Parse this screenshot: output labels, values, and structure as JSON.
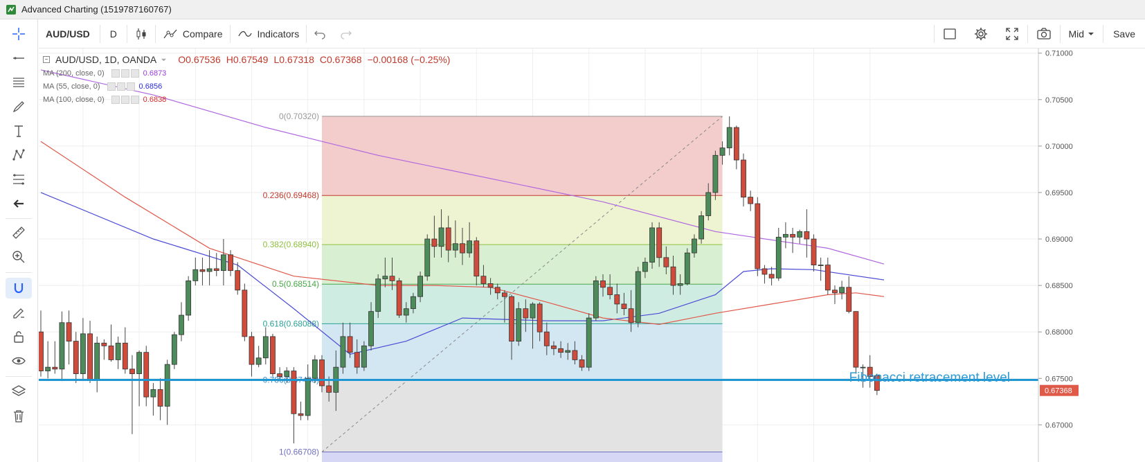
{
  "window": {
    "title": "Advanced Charting (1519787160767)"
  },
  "toolbar": {
    "symbol": "AUD/USD",
    "interval": "D",
    "compare_label": "Compare",
    "indicators_label": "Indicators",
    "price_mode": "Mid",
    "save_label": "Save"
  },
  "legend": {
    "title": "AUD/USD, 1D, OANDA",
    "open": "O0.67536",
    "high": "H0.67549",
    "low": "L0.67318",
    "close": "C0.67368",
    "change": "−0.00168 (−0.25%)",
    "indicators": [
      {
        "label": "MA (200, close, 0)",
        "value": "0.6873",
        "color": "#9b3cd6"
      },
      {
        "label": "MA (55, close, 0)",
        "value": "0.6856",
        "color": "#2b2bd1"
      },
      {
        "label": "MA (100, close, 0)",
        "value": "0.6838",
        "color": "#d22b2b"
      }
    ]
  },
  "annotation": {
    "text": "Fibonacci retracement level",
    "color": "#2e9bd6"
  },
  "chart_data": {
    "type": "candlestick",
    "price_axis": {
      "labels": [
        "0.71000",
        "0.70500",
        "0.70000",
        "0.69500",
        "0.69000",
        "0.68500",
        "0.68000",
        "0.67500",
        "0.67000"
      ],
      "ylim": [
        0.666,
        0.7105
      ],
      "last_price_label": "0.67368",
      "last_price_color": "#e05a4a"
    },
    "fibonacci": {
      "levels": [
        {
          "label": "0(0.70320)",
          "ratio": 0,
          "price": 0.7032,
          "color": "#999999"
        },
        {
          "label": "0.236(0.69468)",
          "ratio": 0.236,
          "price": 0.69468,
          "color": "#c0392b"
        },
        {
          "label": "0.382(0.68940)",
          "ratio": 0.382,
          "price": 0.6894,
          "color": "#8fbf3f"
        },
        {
          "label": "0.5(0.68514)",
          "ratio": 0.5,
          "price": 0.68514,
          "color": "#4aa84a"
        },
        {
          "label": "0.618(0.68088)",
          "ratio": 0.618,
          "price": 0.68088,
          "color": "#2aa198"
        },
        {
          "label": "0.786(0.67483)",
          "ratio": 0.786,
          "price": 0.67483,
          "color": "#3b8fd1"
        },
        {
          "label": "1(0.66708)",
          "ratio": 1,
          "price": 0.66708,
          "color": "#7070c0"
        }
      ],
      "zone_colors": [
        "#f3cccc",
        "#eef3d2",
        "#d9efd2",
        "#cfece3",
        "#d3e7f3",
        "#e3e3e3",
        "#d6d6f5"
      ],
      "start_index": 40,
      "end_index": 97
    },
    "horizontal_line": {
      "price": 0.67483,
      "color": "#1e96d2"
    },
    "candles": [
      [
        0.68,
        0.6823,
        0.6752,
        0.6758
      ],
      [
        0.6758,
        0.679,
        0.675,
        0.6762
      ],
      [
        0.6762,
        0.679,
        0.6755,
        0.676
      ],
      [
        0.676,
        0.6822,
        0.6748,
        0.681
      ],
      [
        0.681,
        0.6823,
        0.6765,
        0.679
      ],
      [
        0.679,
        0.68,
        0.6745,
        0.6755
      ],
      [
        0.6755,
        0.6815,
        0.6748,
        0.6798
      ],
      [
        0.6798,
        0.6812,
        0.6745,
        0.6748
      ],
      [
        0.6748,
        0.6795,
        0.6735,
        0.6788
      ],
      [
        0.6788,
        0.6792,
        0.677,
        0.6785
      ],
      [
        0.6785,
        0.6808,
        0.6768,
        0.677
      ],
      [
        0.677,
        0.6795,
        0.676,
        0.6788
      ],
      [
        0.6788,
        0.6805,
        0.6755,
        0.676
      ],
      [
        0.676,
        0.6775,
        0.669,
        0.6755
      ],
      [
        0.6755,
        0.678,
        0.672,
        0.6778
      ],
      [
        0.6778,
        0.6785,
        0.672,
        0.673
      ],
      [
        0.673,
        0.6745,
        0.671,
        0.6738
      ],
      [
        0.6738,
        0.675,
        0.6705,
        0.672
      ],
      [
        0.672,
        0.677,
        0.67,
        0.6765
      ],
      [
        0.6765,
        0.68,
        0.676,
        0.6797
      ],
      [
        0.6797,
        0.6832,
        0.679,
        0.6818
      ],
      [
        0.6818,
        0.686,
        0.6812,
        0.6855
      ],
      [
        0.6855,
        0.688,
        0.685,
        0.6867
      ],
      [
        0.6867,
        0.688,
        0.685,
        0.6865
      ],
      [
        0.6865,
        0.6888,
        0.685,
        0.6868
      ],
      [
        0.6868,
        0.6885,
        0.686,
        0.6866
      ],
      [
        0.6866,
        0.69,
        0.685,
        0.6883
      ],
      [
        0.6883,
        0.6888,
        0.686,
        0.6866
      ],
      [
        0.6866,
        0.6875,
        0.684,
        0.6845
      ],
      [
        0.6845,
        0.6852,
        0.679,
        0.6795
      ],
      [
        0.6795,
        0.68,
        0.6752,
        0.6765
      ],
      [
        0.6765,
        0.6785,
        0.6762,
        0.6772
      ],
      [
        0.6772,
        0.6805,
        0.6765,
        0.6795
      ],
      [
        0.6795,
        0.6798,
        0.6752,
        0.6755
      ],
      [
        0.6755,
        0.6762,
        0.6748,
        0.6752
      ],
      [
        0.6752,
        0.6762,
        0.6745,
        0.6758
      ],
      [
        0.6758,
        0.6762,
        0.668,
        0.6712
      ],
      [
        0.6712,
        0.6725,
        0.6705,
        0.671
      ],
      [
        0.671,
        0.6765,
        0.6705,
        0.675
      ],
      [
        0.675,
        0.6775,
        0.6745,
        0.677
      ],
      [
        0.677,
        0.6775,
        0.6735,
        0.6742
      ],
      [
        0.6742,
        0.6752,
        0.6725,
        0.6735
      ],
      [
        0.6735,
        0.678,
        0.6715,
        0.6762
      ],
      [
        0.6762,
        0.681,
        0.6755,
        0.6795
      ],
      [
        0.6795,
        0.681,
        0.6772,
        0.6778
      ],
      [
        0.6778,
        0.6792,
        0.6755,
        0.6762
      ],
      [
        0.6762,
        0.679,
        0.6758,
        0.6785
      ],
      [
        0.6785,
        0.6832,
        0.678,
        0.6822
      ],
      [
        0.6822,
        0.6862,
        0.6815,
        0.6857
      ],
      [
        0.6857,
        0.688,
        0.6848,
        0.686
      ],
      [
        0.686,
        0.688,
        0.6845,
        0.6855
      ],
      [
        0.6855,
        0.6858,
        0.6815,
        0.6818
      ],
      [
        0.6818,
        0.6832,
        0.681,
        0.6825
      ],
      [
        0.6825,
        0.6842,
        0.682,
        0.6838
      ],
      [
        0.6838,
        0.6865,
        0.6832,
        0.686
      ],
      [
        0.686,
        0.6905,
        0.6855,
        0.69
      ],
      [
        0.69,
        0.6925,
        0.688,
        0.6892
      ],
      [
        0.6892,
        0.6932,
        0.688,
        0.6912
      ],
      [
        0.6912,
        0.6925,
        0.6875,
        0.6888
      ],
      [
        0.6888,
        0.692,
        0.688,
        0.6895
      ],
      [
        0.6895,
        0.6912,
        0.6872,
        0.6885
      ],
      [
        0.6885,
        0.6918,
        0.688,
        0.6898
      ],
      [
        0.6898,
        0.6902,
        0.685,
        0.686
      ],
      [
        0.686,
        0.6872,
        0.6848,
        0.6852
      ],
      [
        0.6852,
        0.6858,
        0.684,
        0.6848
      ],
      [
        0.6848,
        0.6852,
        0.6835,
        0.6842
      ],
      [
        0.6842,
        0.6845,
        0.681,
        0.6838
      ],
      [
        0.6838,
        0.684,
        0.677,
        0.679
      ],
      [
        0.679,
        0.6832,
        0.6785,
        0.6825
      ],
      [
        0.6825,
        0.6835,
        0.68,
        0.6815
      ],
      [
        0.6815,
        0.6832,
        0.6782,
        0.683
      ],
      [
        0.683,
        0.6832,
        0.679,
        0.68
      ],
      [
        0.68,
        0.681,
        0.6775,
        0.6785
      ],
      [
        0.6785,
        0.679,
        0.6775,
        0.6782
      ],
      [
        0.6782,
        0.679,
        0.6772,
        0.6778
      ],
      [
        0.6778,
        0.6788,
        0.677,
        0.678
      ],
      [
        0.678,
        0.679,
        0.6765,
        0.677
      ],
      [
        0.677,
        0.6775,
        0.6758,
        0.6762
      ],
      [
        0.6762,
        0.682,
        0.6758,
        0.6815
      ],
      [
        0.6815,
        0.686,
        0.6812,
        0.6855
      ],
      [
        0.6855,
        0.6862,
        0.6838,
        0.6848
      ],
      [
        0.6848,
        0.6862,
        0.6835,
        0.684
      ],
      [
        0.684,
        0.6852,
        0.682,
        0.683
      ],
      [
        0.683,
        0.6842,
        0.6818,
        0.6825
      ],
      [
        0.6825,
        0.6845,
        0.68,
        0.681
      ],
      [
        0.681,
        0.687,
        0.6805,
        0.6865
      ],
      [
        0.6865,
        0.688,
        0.6858,
        0.6875
      ],
      [
        0.6875,
        0.6918,
        0.6868,
        0.6912
      ],
      [
        0.6912,
        0.6918,
        0.687,
        0.688
      ],
      [
        0.688,
        0.6892,
        0.6862,
        0.687
      ],
      [
        0.687,
        0.6882,
        0.684,
        0.685
      ],
      [
        0.685,
        0.6862,
        0.684,
        0.6852
      ],
      [
        0.6852,
        0.689,
        0.685,
        0.6885
      ],
      [
        0.6885,
        0.6905,
        0.688,
        0.69
      ],
      [
        0.69,
        0.693,
        0.6895,
        0.6925
      ],
      [
        0.6925,
        0.696,
        0.692,
        0.695
      ],
      [
        0.695,
        0.6995,
        0.6942,
        0.699
      ],
      [
        0.699,
        0.7005,
        0.698,
        0.6998
      ],
      [
        0.6998,
        0.7032,
        0.699,
        0.702
      ],
      [
        0.702,
        0.7022,
        0.6975,
        0.6985
      ],
      [
        0.6985,
        0.6992,
        0.6935,
        0.6945
      ],
      [
        0.6945,
        0.6952,
        0.693,
        0.6938
      ],
      [
        0.6938,
        0.6945,
        0.686,
        0.6868
      ],
      [
        0.6868,
        0.6872,
        0.6852,
        0.6862
      ],
      [
        0.6862,
        0.687,
        0.685,
        0.6858
      ],
      [
        0.6858,
        0.6912,
        0.6855,
        0.6902
      ],
      [
        0.6902,
        0.6918,
        0.689,
        0.6905
      ],
      [
        0.6905,
        0.6912,
        0.6885,
        0.6902
      ],
      [
        0.6902,
        0.691,
        0.6895,
        0.6908
      ],
      [
        0.6908,
        0.6932,
        0.688,
        0.69
      ],
      [
        0.69,
        0.6905,
        0.6865,
        0.6872
      ],
      [
        0.6872,
        0.688,
        0.6855,
        0.6872
      ],
      [
        0.6872,
        0.688,
        0.684,
        0.6845
      ],
      [
        0.6845,
        0.685,
        0.683,
        0.6842
      ],
      [
        0.6842,
        0.6855,
        0.6835,
        0.6848
      ],
      [
        0.6848,
        0.686,
        0.682,
        0.6822
      ],
      [
        0.6822,
        0.6822,
        0.6755,
        0.6762
      ],
      [
        0.6762,
        0.6765,
        0.674,
        0.6762
      ],
      [
        0.6762,
        0.6775,
        0.674,
        0.6752
      ],
      [
        0.6753,
        0.6755,
        0.6732,
        0.6737
      ]
    ],
    "moving_averages": [
      {
        "name": "MA (200, close, 0)",
        "color": "#b067e0",
        "points": [
          [
            0,
            0.7082
          ],
          [
            16,
            0.7055
          ],
          [
            32,
            0.702
          ],
          [
            48,
            0.699
          ],
          [
            64,
            0.6965
          ],
          [
            80,
            0.694
          ],
          [
            96,
            0.6908
          ],
          [
            112,
            0.689
          ],
          [
            120,
            0.6873
          ]
        ]
      },
      {
        "name": "MA (55, close, 0)",
        "color": "#4b4bd6",
        "points": [
          [
            0,
            0.695
          ],
          [
            16,
            0.69
          ],
          [
            28,
            0.6872
          ],
          [
            36,
            0.6825
          ],
          [
            44,
            0.6776
          ],
          [
            52,
            0.679
          ],
          [
            60,
            0.6815
          ],
          [
            72,
            0.6812
          ],
          [
            80,
            0.6812
          ],
          [
            88,
            0.682
          ],
          [
            96,
            0.684
          ],
          [
            100,
            0.6865
          ],
          [
            104,
            0.6868
          ],
          [
            110,
            0.6867
          ],
          [
            120,
            0.6856
          ]
        ]
      },
      {
        "name": "MA (100, close, 0)",
        "color": "#e0584a",
        "points": [
          [
            0,
            0.7005
          ],
          [
            12,
            0.6945
          ],
          [
            24,
            0.689
          ],
          [
            36,
            0.686
          ],
          [
            48,
            0.685
          ],
          [
            56,
            0.685
          ],
          [
            64,
            0.6848
          ],
          [
            72,
            0.6832
          ],
          [
            80,
            0.6815
          ],
          [
            88,
            0.6808
          ],
          [
            96,
            0.682
          ],
          [
            104,
            0.683
          ],
          [
            112,
            0.684
          ],
          [
            116,
            0.6842
          ],
          [
            120,
            0.6838
          ]
        ]
      }
    ]
  }
}
